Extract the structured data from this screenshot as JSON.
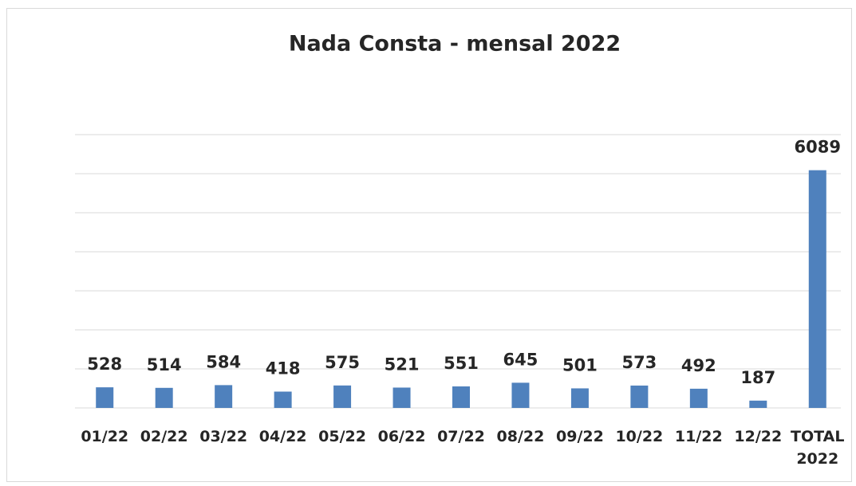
{
  "chart_data": {
    "type": "bar",
    "title": "Nada Consta - mensal 2022",
    "categories": [
      "01/22",
      "02/22",
      "03/22",
      "04/22",
      "05/22",
      "06/22",
      "07/22",
      "08/22",
      "09/22",
      "10/22",
      "11/22",
      "12/22",
      "TOTAL 2022"
    ],
    "values": [
      528,
      514,
      584,
      418,
      575,
      521,
      551,
      645,
      501,
      573,
      492,
      187,
      6089
    ],
    "color": "#4f81bd",
    "ylim": [
      0,
      7000
    ],
    "yticks": [
      0,
      1000,
      2000,
      3000,
      4000,
      5000,
      6000,
      7000
    ],
    "grid": true
  }
}
